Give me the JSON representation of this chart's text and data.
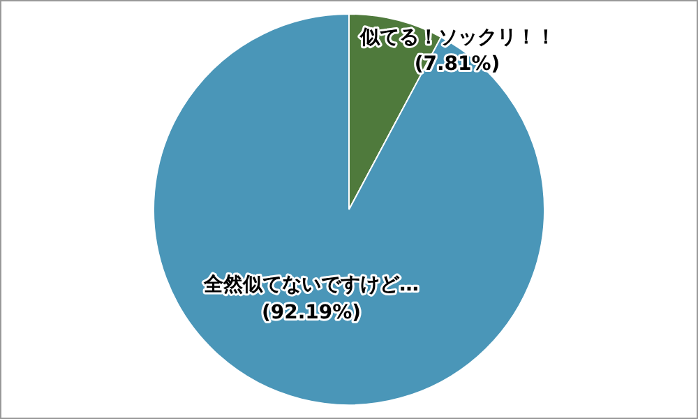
{
  "chart_data": {
    "type": "pie",
    "categories": [
      "似てる！ソックリ！！",
      "全然似てないですけど…"
    ],
    "values": [
      7.81,
      92.19
    ],
    "colors": [
      "#4f7a3c",
      "#4a96b8"
    ],
    "value_labels": [
      "(7.81%)",
      "(92.19%)"
    ]
  }
}
